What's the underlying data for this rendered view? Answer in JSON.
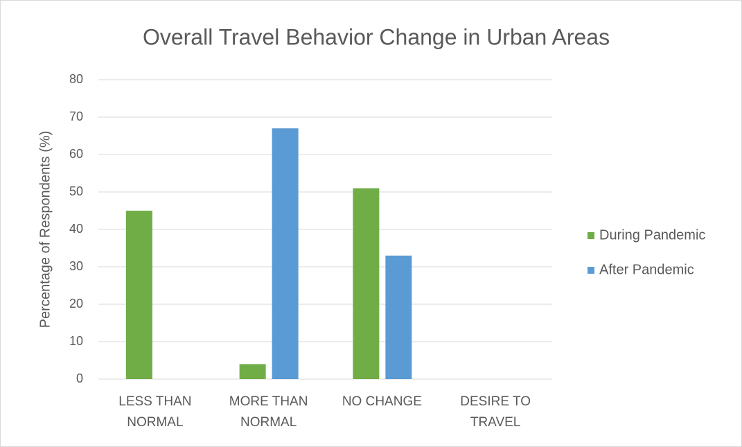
{
  "chart_data": {
    "type": "bar",
    "title": "Overall Travel Behavior Change in Urban Areas",
    "ylabel": "Percentage of Respondents (%)",
    "categories": [
      "LESS THAN NORMAL",
      "MORE THAN NORMAL",
      "NO CHANGE",
      "DESIRE TO TRAVEL"
    ],
    "series": [
      {
        "name": "During Pandemic",
        "color": "#70ad47",
        "values": [
          45,
          4,
          51,
          0
        ]
      },
      {
        "name": "After Pandemic",
        "color": "#5b9bd5",
        "values": [
          0,
          67,
          33,
          0
        ]
      }
    ],
    "ylim": [
      0,
      80
    ],
    "yticks": [
      0,
      10,
      20,
      30,
      40,
      50,
      60,
      70,
      80
    ],
    "grid": true,
    "legend": "right"
  }
}
